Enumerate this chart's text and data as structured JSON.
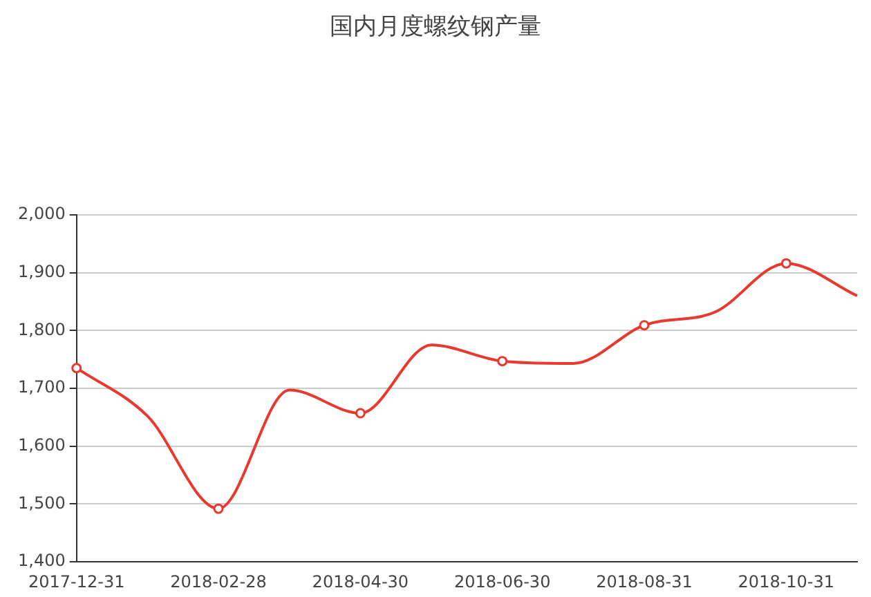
{
  "chart_data": {
    "type": "line",
    "title": "国内月度螺纹钢产量",
    "categories": [
      "2017-12-31",
      null,
      "2018-02-28",
      null,
      "2018-04-30",
      null,
      "2018-06-30",
      null,
      "2018-08-31",
      null,
      "2018-10-31",
      null
    ],
    "series": [
      {
        "color": "#e8392f",
        "values": [
          1735,
          1652,
          1492,
          1697,
          1657,
          1775,
          1747,
          1743,
          1809,
          1832,
          1916,
          1860
        ]
      }
    ],
    "ylim": [
      1400,
      2000
    ],
    "yticks": [
      {
        "value": 1400,
        "label": "1,400"
      },
      {
        "value": 1500,
        "label": "1,500"
      },
      {
        "value": 1600,
        "label": "1,600"
      },
      {
        "value": 1700,
        "label": "1,700"
      },
      {
        "value": 1800,
        "label": "1,800"
      },
      {
        "value": 1900,
        "label": "1,900"
      },
      {
        "value": 2000,
        "label": "2,000"
      }
    ],
    "grid": "y",
    "legend": false,
    "marker": "circle",
    "line_style": "solid"
  }
}
